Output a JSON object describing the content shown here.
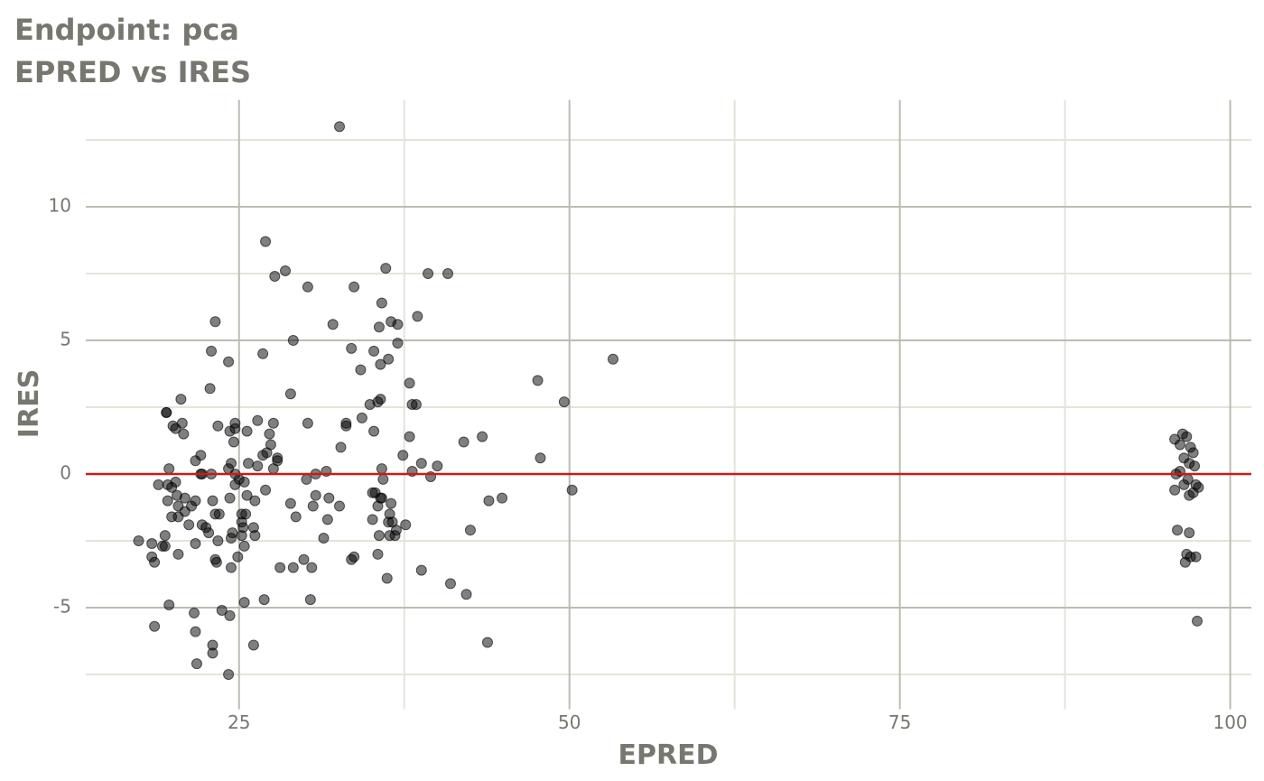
{
  "chart_data": {
    "type": "scatter",
    "title": "Endpoint:  pca",
    "subtitle": "EPRED vs IRES",
    "x_label": "EPRED",
    "y_label": "IRES",
    "xlim": [
      13.4,
      101.6
    ],
    "ylim": [
      -8.8,
      14.0
    ],
    "xticks": [
      25,
      50,
      75,
      100
    ],
    "yticks": [
      -5,
      0,
      5,
      10
    ],
    "x_minor_ticks": [
      37.5,
      62.5,
      87.5
    ],
    "y_minor_ticks": [
      -7.5,
      -2.5,
      2.5,
      7.5,
      12.5
    ],
    "grid": true,
    "hline": 0,
    "hline_color": "#cc1a1a",
    "color": "#000000",
    "x": [
      32.6,
      27.0,
      28.5,
      27.7,
      30.2,
      33.7,
      36.1,
      39.3,
      40.8,
      38.5,
      23.2,
      32.1,
      36.5,
      37.0,
      35.6,
      35.8,
      29.1,
      37.0,
      33.5,
      22.9,
      26.8,
      35.2,
      36.3,
      53.3,
      24.2,
      35.7,
      34.2,
      47.6,
      37.9,
      22.8,
      28.9,
      20.6,
      35.7,
      34.9,
      35.5,
      38.1,
      38.4,
      49.6,
      19.5,
      19.5,
      34.3,
      26.4,
      24.7,
      30.2,
      33.1,
      27.6,
      20.7,
      33.1,
      23.4,
      20.0,
      20.2,
      24.7,
      27.3,
      24.3,
      25.6,
      35.2,
      20.8,
      37.9,
      43.4,
      24.6,
      42.0,
      27.4,
      32.7,
      22.1,
      37.4,
      26.8,
      27.1,
      27.9,
      47.8,
      21.7,
      27.9,
      38.8,
      25.7,
      24.4,
      40.0,
      26.4,
      27.6,
      35.8,
      24.2,
      19.7,
      38.1,
      31.6,
      30.8,
      22.1,
      22.2,
      22.9,
      24.7,
      39.5,
      35.9,
      30.1,
      20.2,
      25.0,
      25.4,
      19.6,
      18.9,
      19.9,
      24.7,
      27.0,
      50.2,
      20.3,
      30.8,
      35.1,
      35.3,
      20.9,
      24.3,
      25.6,
      31.8,
      35.7,
      44.9,
      35.8,
      43.9,
      19.6,
      21.7,
      23.0,
      26.2,
      21.4,
      20.4,
      28.9,
      30.6,
      32.6,
      35.5,
      36.5,
      20.9,
      25.5,
      23.2,
      23.5,
      25.2,
      19.9,
      20.4,
      29.3,
      31.7,
      35.1,
      36.4,
      36.3,
      36.6,
      25.2,
      22.2,
      21.2,
      37.6,
      22.5,
      25.3,
      26.1,
      36.9,
      42.5,
      22.7,
      24.5,
      19.4,
      25.2,
      36.4,
      35.6,
      36.8,
      26.2,
      31.4,
      24.4,
      17.4,
      23.4,
      21.7,
      18.4,
      19.4,
      19.2,
      25.4,
      20.4,
      35.5,
      18.4,
      24.9,
      29.9,
      33.7,
      33.5,
      23.2,
      23.3,
      18.6,
      28.1,
      29.1,
      30.5,
      24.4,
      38.8,
      36.2,
      41.0,
      42.2,
      30.4,
      26.9,
      25.4,
      19.7,
      21.6,
      23.7,
      24.3,
      18.6,
      21.7,
      43.8,
      26.1,
      23.0,
      23.0,
      21.8,
      24.2,
      96.4,
      96.7,
      95.8,
      96.2,
      97.0,
      97.2,
      96.5,
      97.3,
      96.9,
      96.2,
      95.9,
      96.8,
      97.4,
      97.6,
      96.5,
      95.8,
      97.2,
      96.9,
      96.0,
      96.9,
      96.7,
      97.0,
      97.4,
      96.6,
      97.5
    ],
    "values": [
      13.0,
      8.7,
      7.6,
      7.4,
      7.0,
      7.0,
      7.7,
      7.5,
      7.5,
      5.9,
      5.7,
      5.6,
      5.7,
      5.6,
      5.5,
      6.4,
      5.0,
      4.9,
      4.7,
      4.6,
      4.5,
      4.6,
      4.3,
      4.3,
      4.2,
      4.1,
      3.9,
      3.5,
      3.4,
      3.2,
      3.0,
      2.8,
      2.8,
      2.6,
      2.7,
      2.6,
      2.6,
      2.7,
      2.3,
      2.3,
      2.1,
      2.0,
      1.9,
      1.9,
      1.9,
      1.9,
      1.9,
      1.8,
      1.8,
      1.8,
      1.7,
      1.7,
      1.5,
      1.6,
      1.6,
      1.6,
      1.5,
      1.4,
      1.4,
      1.2,
      1.2,
      1.1,
      1.0,
      0.7,
      0.7,
      0.7,
      0.8,
      0.6,
      0.6,
      0.5,
      0.5,
      0.4,
      0.4,
      0.4,
      0.3,
      0.3,
      0.2,
      0.2,
      0.2,
      0.2,
      0.1,
      0.1,
      0.0,
      0.0,
      0.0,
      0.0,
      0.0,
      -0.1,
      -0.2,
      -0.2,
      -0.3,
      -0.2,
      -0.3,
      -0.4,
      -0.4,
      -0.5,
      -0.4,
      -0.6,
      -0.6,
      -0.8,
      -0.8,
      -0.7,
      -0.7,
      -0.9,
      -0.9,
      -0.8,
      -0.9,
      -0.9,
      -0.9,
      -0.9,
      -1.0,
      -1.0,
      -1.0,
      -1.0,
      -1.0,
      -1.2,
      -1.2,
      -1.1,
      -1.2,
      -1.2,
      -1.2,
      -1.1,
      -1.4,
      -1.5,
      -1.5,
      -1.5,
      -1.5,
      -1.6,
      -1.6,
      -1.6,
      -1.7,
      -1.7,
      -1.5,
      -1.8,
      -1.8,
      -1.8,
      -1.9,
      -1.9,
      -1.9,
      -2.0,
      -2.0,
      -2.0,
      -2.1,
      -2.1,
      -2.2,
      -2.2,
      -2.3,
      -2.3,
      -2.3,
      -2.3,
      -2.3,
      -2.3,
      -2.4,
      -2.4,
      -2.5,
      -2.5,
      -2.6,
      -2.6,
      -2.7,
      -2.7,
      -2.7,
      -3.0,
      -3.0,
      -3.1,
      -3.1,
      -3.2,
      -3.1,
      -3.2,
      -3.2,
      -3.3,
      -3.3,
      -3.5,
      -3.5,
      -3.5,
      -3.5,
      -3.6,
      -3.9,
      -4.1,
      -4.5,
      -4.7,
      -4.7,
      -4.8,
      -4.9,
      -5.2,
      -5.1,
      -5.3,
      -5.7,
      -5.9,
      -6.3,
      -6.4,
      -6.4,
      -6.7,
      -7.1,
      -7.5,
      1.5,
      1.4,
      1.3,
      1.1,
      1.0,
      0.8,
      0.6,
      0.3,
      0.4,
      0.1,
      0.0,
      -0.2,
      -0.4,
      -0.5,
      -0.4,
      -0.6,
      -0.7,
      -0.8,
      -2.1,
      -2.2,
      -3.0,
      -3.1,
      -3.1,
      -3.3,
      -5.5
    ]
  }
}
